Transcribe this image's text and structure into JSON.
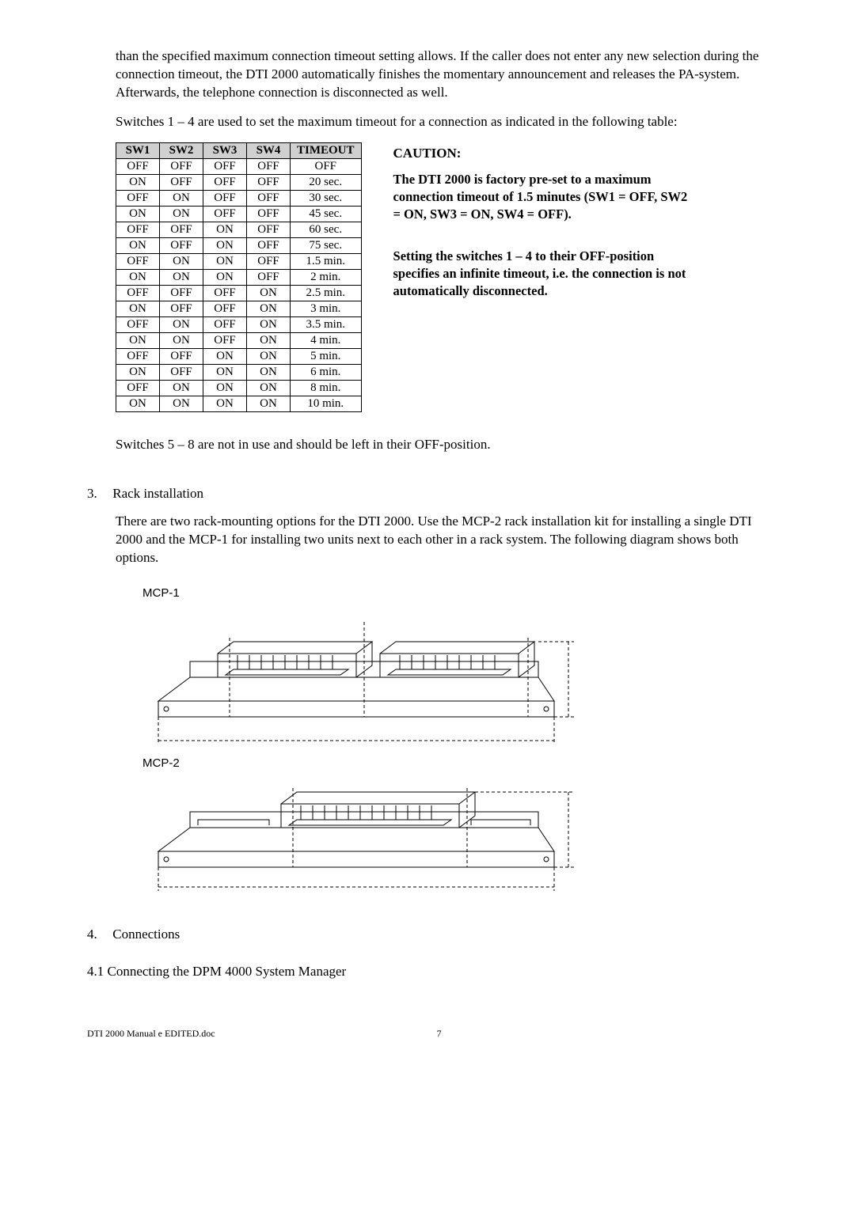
{
  "para1": "than the specified maximum connection timeout setting allows. If the caller does not enter any new selection during the connection timeout, the DTI 2000 automatically finishes the momentary announcement and releases the PA-system. Afterwards, the telephone connection is disconnected as well.",
  "para2": "Switches 1 – 4 are used to set the maximum timeout for a connection as indicated in the following table:",
  "table": {
    "headers": [
      "SW1",
      "SW2",
      "SW3",
      "SW4",
      "TIMEOUT"
    ],
    "rows": [
      [
        "OFF",
        "OFF",
        "OFF",
        "OFF",
        "OFF"
      ],
      [
        "ON",
        "OFF",
        "OFF",
        "OFF",
        "20 sec."
      ],
      [
        "OFF",
        "ON",
        "OFF",
        "OFF",
        "30 sec."
      ],
      [
        "ON",
        "ON",
        "OFF",
        "OFF",
        "45 sec."
      ],
      [
        "OFF",
        "OFF",
        "ON",
        "OFF",
        "60 sec."
      ],
      [
        "ON",
        "OFF",
        "ON",
        "OFF",
        "75 sec."
      ],
      [
        "OFF",
        "ON",
        "ON",
        "OFF",
        "1.5 min."
      ],
      [
        "ON",
        "ON",
        "ON",
        "OFF",
        "2 min."
      ],
      [
        "OFF",
        "OFF",
        "OFF",
        "ON",
        "2.5 min."
      ],
      [
        "ON",
        "OFF",
        "OFF",
        "ON",
        "3 min."
      ],
      [
        "OFF",
        "ON",
        "OFF",
        "ON",
        "3.5 min."
      ],
      [
        "ON",
        "ON",
        "OFF",
        "ON",
        "4 min."
      ],
      [
        "OFF",
        "OFF",
        "ON",
        "ON",
        "5 min."
      ],
      [
        "ON",
        "OFF",
        "ON",
        "ON",
        "6 min."
      ],
      [
        "OFF",
        "ON",
        "ON",
        "ON",
        "8 min."
      ],
      [
        "ON",
        "ON",
        "ON",
        "ON",
        "10 min."
      ]
    ]
  },
  "caution_label": "CAUTION:",
  "caution_p1": "The DTI 2000 is factory pre-set to a maximum connection timeout of 1.5 minutes (SW1 = OFF, SW2 = ON, SW3 = ON, SW4 = OFF).",
  "caution_p2": "Setting the switches 1 – 4 to their OFF-position specifies an infinite timeout, i.e. the connection is not automatically disconnected.",
  "para3": "Switches 5 – 8 are not in use and should be left in their OFF-position.",
  "section3_num": "3.",
  "section3_title": "Rack installation",
  "section3_body": "There are two rack-mounting options for the DTI 2000. Use the MCP-2 rack installation kit for installing a single DTI 2000 and the MCP-1 for installing two units next to each other in a rack system. The following diagram shows both options.",
  "mcp1": "MCP-1",
  "mcp2": "MCP-2",
  "section4_num": "4.",
  "section4_title": "Connections",
  "section41": "4.1 Connecting the DPM 4000 System Manager",
  "footer_file": "DTI 2000 Manual e EDITED.doc",
  "footer_page": "7",
  "colors": {
    "header_bg": "#d0d0d0",
    "text": "#000000",
    "bg": "#ffffff",
    "line": "#000000"
  }
}
